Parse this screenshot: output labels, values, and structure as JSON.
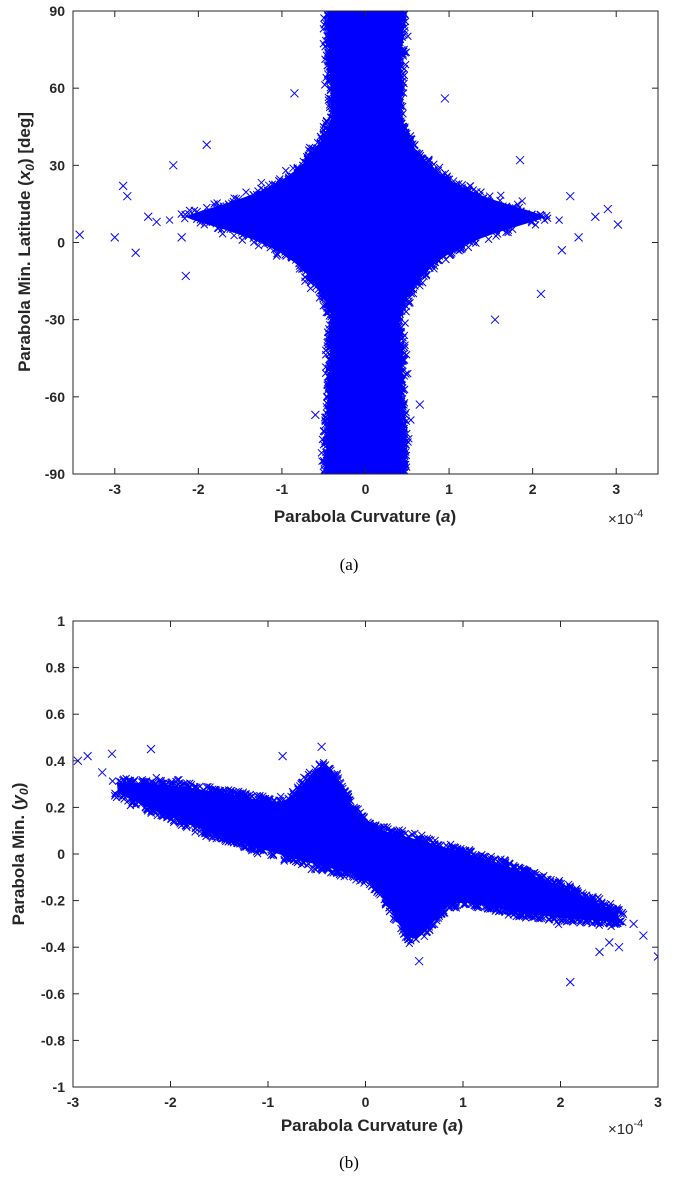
{
  "colors": {
    "marker": "#0000ff",
    "axis": "#262626",
    "background": "#ffffff"
  },
  "chart_data": [
    {
      "type": "scatter",
      "marker": "x",
      "caption": "(a)",
      "xlabel": "Parabola Curvature (a)",
      "xlabel_parts": [
        "Parabola Curvature (",
        "a",
        ")"
      ],
      "ylabel": "Parabola Min. Latitude (x0) [deg]",
      "ylabel_parts": [
        "Parabola Min. Latitude (",
        "x",
        "0",
        ") [deg]"
      ],
      "x_exponent_base": "×10",
      "x_exponent": "-4",
      "xlim": [
        -3.5,
        3.5
      ],
      "ylim": [
        -90,
        90
      ],
      "xticks": [
        -3,
        -2,
        -1,
        0,
        1,
        2,
        3
      ],
      "xtick_labels": [
        "-3",
        "-2",
        "-1",
        "0",
        "1",
        "2",
        "3"
      ],
      "yticks": [
        -90,
        -60,
        -30,
        0,
        30,
        60,
        90
      ],
      "ytick_labels": [
        "-90",
        "-60",
        "-30",
        "0",
        "30",
        "60",
        "90"
      ],
      "grid": false,
      "distribution": "dense four-armed cloud centered near (0, 10): narrow vertical band spanning full latitude range, horizontal spread to about ±2.5e-4 near latitude 10",
      "outlier_points": [
        {
          "x": -3.42,
          "y": 3
        },
        {
          "x": -3.0,
          "y": 2
        },
        {
          "x": -2.9,
          "y": 22
        },
        {
          "x": -2.85,
          "y": 18
        },
        {
          "x": -2.75,
          "y": -4
        },
        {
          "x": -2.6,
          "y": 10
        },
        {
          "x": -2.5,
          "y": 8
        },
        {
          "x": -2.3,
          "y": 30
        },
        {
          "x": -2.2,
          "y": 2
        },
        {
          "x": -2.15,
          "y": -13
        },
        {
          "x": 3.02,
          "y": 7
        },
        {
          "x": 2.9,
          "y": 13
        },
        {
          "x": 2.75,
          "y": 10
        },
        {
          "x": 2.55,
          "y": 2
        },
        {
          "x": 2.45,
          "y": 18
        },
        {
          "x": 2.35,
          "y": -3
        },
        {
          "x": 2.1,
          "y": -20
        },
        {
          "x": 1.55,
          "y": -30
        },
        {
          "x": -1.9,
          "y": 38
        },
        {
          "x": 1.85,
          "y": 32
        },
        {
          "x": -0.85,
          "y": 58
        },
        {
          "x": 0.95,
          "y": 56
        },
        {
          "x": 0.65,
          "y": -63
        },
        {
          "x": -0.6,
          "y": -67
        }
      ]
    },
    {
      "type": "scatter",
      "marker": "x",
      "caption": "(b)",
      "xlabel": "Parabola Curvature (a)",
      "xlabel_parts": [
        "Parabola Curvature (",
        "a",
        ")"
      ],
      "ylabel": "Parabola Min. (y0)",
      "ylabel_parts": [
        "Parabola Min. (",
        "y",
        "0",
        ")"
      ],
      "x_exponent_base": "×10",
      "x_exponent": "-4",
      "xlim": [
        -3,
        3
      ],
      "ylim": [
        -1,
        1
      ],
      "xticks": [
        -3,
        -2,
        -1,
        0,
        1,
        2,
        3
      ],
      "xtick_labels": [
        "-3",
        "-2",
        "-1",
        "0",
        "1",
        "2",
        "3"
      ],
      "yticks": [
        -1,
        -0.8,
        -0.6,
        -0.4,
        -0.2,
        0,
        0.2,
        0.4,
        0.6,
        0.8,
        1
      ],
      "ytick_labels": [
        "-1",
        "-0.8",
        "-0.6",
        "-0.4",
        "-0.2",
        "0",
        "0.2",
        "0.4",
        "0.6",
        "0.8",
        "1"
      ],
      "grid": false,
      "distribution": "dense cloud along a negative-slope band from (-2.5e-4, 0.28) to (2.5e-4, -0.28), with lobes peaking near (-0.4e-4, 0.45) and (0.5e-4, -0.45)",
      "outlier_points": [
        {
          "x": -2.95,
          "y": 0.4
        },
        {
          "x": -2.85,
          "y": 0.42
        },
        {
          "x": -2.7,
          "y": 0.35
        },
        {
          "x": -2.6,
          "y": 0.43
        },
        {
          "x": -2.2,
          "y": 0.45
        },
        {
          "x": -0.45,
          "y": 0.46
        },
        {
          "x": -0.85,
          "y": 0.42
        },
        {
          "x": 0.55,
          "y": -0.46
        },
        {
          "x": 2.1,
          "y": -0.55
        },
        {
          "x": 2.6,
          "y": -0.4
        },
        {
          "x": 2.75,
          "y": -0.3
        },
        {
          "x": 2.85,
          "y": -0.35
        },
        {
          "x": 3.0,
          "y": -0.44
        },
        {
          "x": 2.5,
          "y": -0.38
        },
        {
          "x": 2.4,
          "y": -0.42
        }
      ]
    }
  ]
}
